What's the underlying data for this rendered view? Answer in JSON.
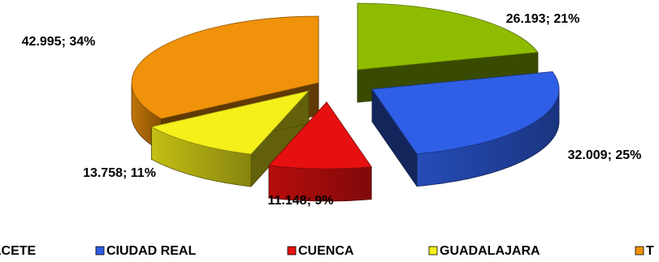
{
  "chart_data": {
    "type": "pie",
    "title": "",
    "slices": [
      {
        "name": "ALBACETE",
        "value": 26.193,
        "label": "26.193; 21%",
        "color": "#8fbc00"
      },
      {
        "name": "CIUDAD REAL",
        "value": 32.009,
        "label": "32.009; 25%",
        "color": "#2f5fe6"
      },
      {
        "name": "CUENCA",
        "value": 11.148,
        "label": "11.148; 9%",
        "color": "#e61010"
      },
      {
        "name": "GUADALAJARA",
        "value": 13.758,
        "label": "13.758; 11%",
        "color": "#f5f01a"
      },
      {
        "name": "TOLEDO",
        "value": 42.995,
        "label": "42.995; 34%",
        "color": "#f0920a"
      }
    ],
    "legend": {
      "placement": "bottom",
      "items": [
        {
          "label": "ACETE",
          "color": "#8fbc00"
        },
        {
          "label": "CIUDAD REAL",
          "color": "#2f5fe6"
        },
        {
          "label": "CUENCA",
          "color": "#e61010"
        },
        {
          "label": "GUADALAJARA",
          "color": "#f5f01a"
        },
        {
          "label": "T",
          "color": "#f0920a"
        }
      ]
    }
  }
}
